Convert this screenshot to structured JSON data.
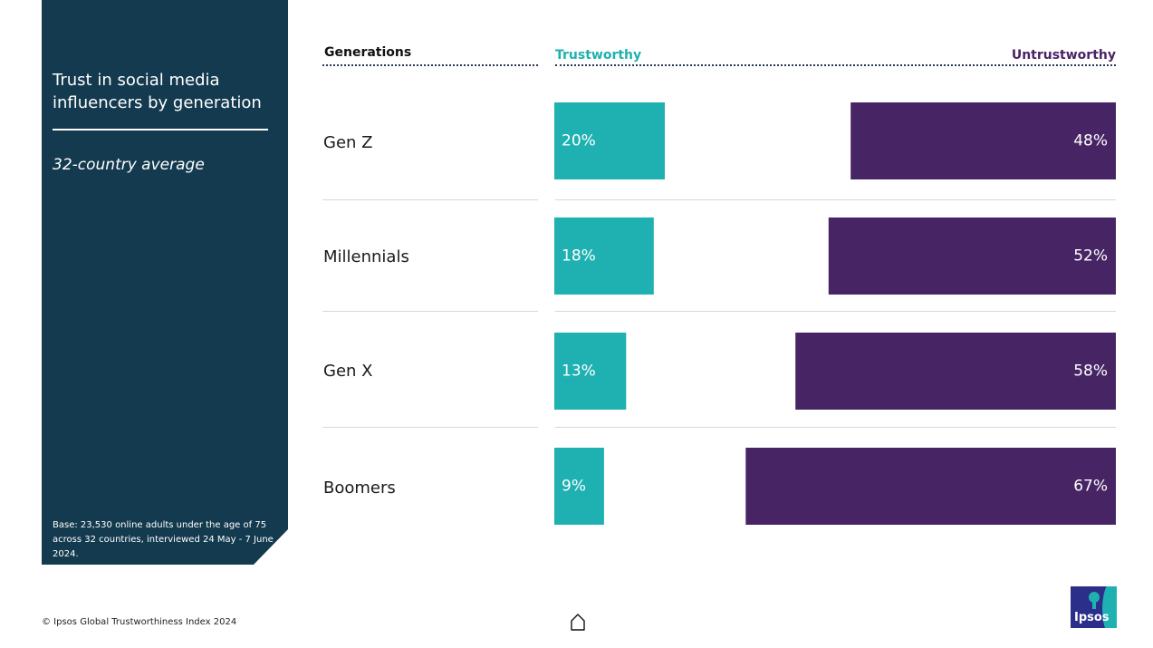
{
  "side_panel": {
    "title": "Trust in social media influencers by generation",
    "subtitle": "32-country average",
    "base_note": "Base: 23,530 online adults under the age of 75 across 32 countries, interviewed 24 May - 7 June 2024."
  },
  "headers": {
    "generations": "Generations",
    "trustworthy": "Trustworthy",
    "untrustworthy": "Untrustworthy"
  },
  "footer": {
    "copyright": "© Ipsos Global Trustworthiness Index 2024",
    "logo_text": "Ipsos"
  },
  "colors": {
    "panel": "#133a4e",
    "trustworthy": "#1fb1b1",
    "untrustworthy": "#472564"
  },
  "chart_data": {
    "type": "bar",
    "categories": [
      "Gen Z",
      "Millennials",
      "Gen X",
      "Boomers"
    ],
    "series": [
      {
        "name": "Trustworthy",
        "values": [
          20,
          18,
          13,
          9
        ],
        "labels": [
          "20%",
          "18%",
          "13%",
          "9%"
        ]
      },
      {
        "name": "Untrustworthy",
        "values": [
          48,
          52,
          58,
          67
        ],
        "labels": [
          "48%",
          "52%",
          "58%",
          "67%"
        ]
      }
    ],
    "unit": "%",
    "grid": false
  }
}
